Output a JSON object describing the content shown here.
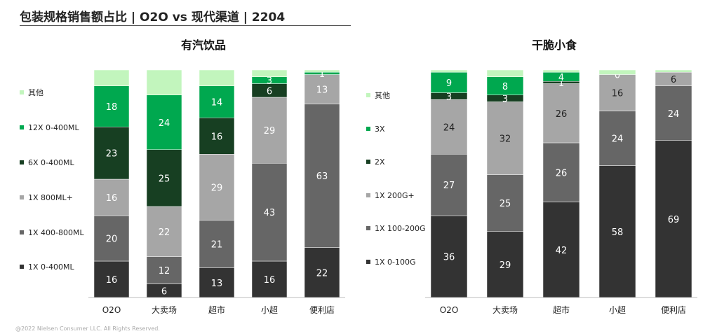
{
  "title": "包装规格销售额占比 | O2O vs 现代渠道 | 2204",
  "footer": "@2022 Nielsen Consumer LLC. All Rights Reserved.",
  "chart_data": [
    {
      "type": "bar",
      "stacked": true,
      "title": "有汽饮品",
      "categories": [
        "O2O",
        "大卖场",
        "超市",
        "小超",
        "便利店"
      ],
      "series": [
        {
          "name": "1X 0-400ML",
          "color": "#333333",
          "values": [
            16,
            6,
            13,
            16,
            22
          ]
        },
        {
          "name": "1X 400-800ML",
          "color": "#666666",
          "values": [
            20,
            12,
            21,
            43,
            63
          ]
        },
        {
          "name": "1X 800ML+",
          "color": "#a6a6a6",
          "values": [
            16,
            22,
            29,
            29,
            13
          ]
        },
        {
          "name": "6X 0-400ML",
          "color": "#173f22",
          "values": [
            23,
            25,
            16,
            6,
            null
          ]
        },
        {
          "name": "12X 0-400ML",
          "color": "#00a84f",
          "values": [
            18,
            24,
            14,
            3,
            1
          ]
        },
        {
          "name": "其他",
          "color": "#c2f5bd",
          "values": [
            null,
            null,
            null,
            null,
            null
          ]
        }
      ],
      "ylim": [
        0,
        100
      ],
      "legend": "left"
    },
    {
      "type": "bar",
      "stacked": true,
      "title": "干脆小食",
      "categories": [
        "O2O",
        "大卖场",
        "超市",
        "小超",
        "便利店"
      ],
      "series": [
        {
          "name": "1X 0-100G",
          "color": "#333333",
          "values": [
            36,
            29,
            42,
            58,
            69
          ]
        },
        {
          "name": "1X 100-200G",
          "color": "#666666",
          "values": [
            27,
            25,
            26,
            24,
            24
          ]
        },
        {
          "name": "1X 200G+",
          "color": "#a6a6a6",
          "values": [
            24,
            32,
            26,
            16,
            6
          ]
        },
        {
          "name": "2X",
          "color": "#173f22",
          "values": [
            3,
            3,
            1,
            null,
            null
          ]
        },
        {
          "name": "3X",
          "color": "#00a84f",
          "values": [
            9,
            8,
            4,
            0,
            null
          ]
        },
        {
          "name": "其他",
          "color": "#c2f5bd",
          "values": [
            null,
            null,
            null,
            null,
            null
          ]
        }
      ],
      "ylim": [
        0,
        100
      ],
      "legend": "left"
    }
  ]
}
